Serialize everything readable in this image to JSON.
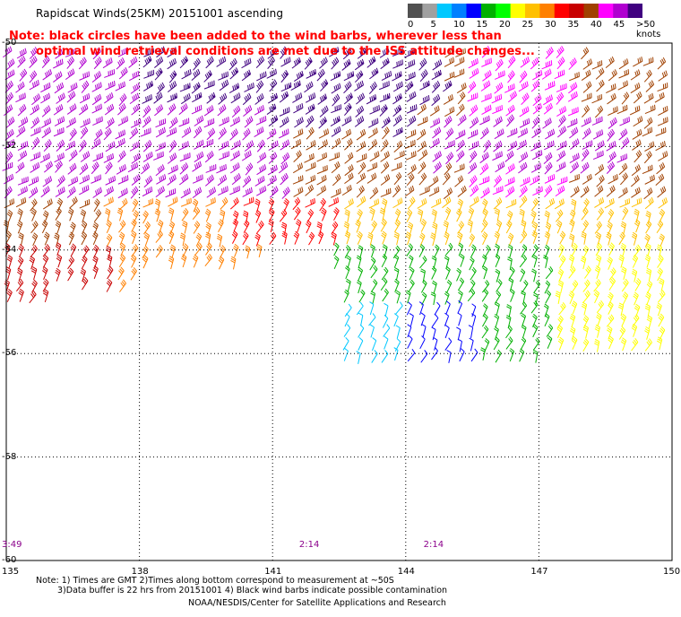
{
  "title": "Rapidscat Winds(25KM) 20151001 ascending",
  "note_line1": "Note: black circles have been added to the wind barbs, wherever less than",
  "note_line2": "optimal wind retrieval conditions are met due to the ISS attitude changes...",
  "legend": {
    "colors": [
      "#505050",
      "#a0a0a0",
      "#00c8ff",
      "#0080ff",
      "#0000ff",
      "#00b000",
      "#00ff00",
      "#ffff00",
      "#ffc000",
      "#ff8000",
      "#ff0000",
      "#c80000",
      "#a04000",
      "#ff00ff",
      "#b000d0",
      "#400080"
    ],
    "labels": [
      "0",
      "5",
      "10",
      "15",
      "20",
      "25",
      "30",
      "35",
      "40",
      "45",
      ">50 knots"
    ]
  },
  "axes": {
    "lat_labels": [
      "-50",
      "-52",
      "-54",
      "-56",
      "-58",
      "-60"
    ],
    "lat_values": [
      -50,
      -52,
      -54,
      -56,
      -58,
      -60
    ],
    "lon_labels": [
      "135",
      "138",
      "141",
      "144",
      "147",
      "150"
    ],
    "lon_values": [
      135,
      138,
      141,
      144,
      147,
      150
    ]
  },
  "time_labels": [
    "3:49",
    "2:14",
    "2:14"
  ],
  "time_lons": [
    135.0,
    141.6,
    144.4
  ],
  "footnote_line1": "Note: 1) Times are GMT 2)Times along bottom correspond to measurement at ~50S",
  "footnote_line2": "3)Data buffer is 22 hrs from 20151001 4) Black wind barbs indicate possible contamination",
  "credit": "NOAA/NESDIS/Center for Satellite Applications and Research"
}
